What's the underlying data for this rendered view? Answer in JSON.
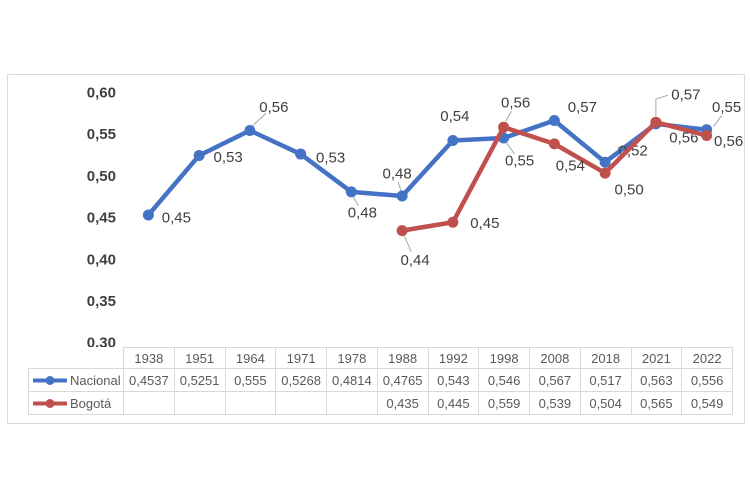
{
  "chart_data": {
    "type": "line",
    "title": "",
    "categories": [
      "1938",
      "1951",
      "1964",
      "1971",
      "1978",
      "1988",
      "1992",
      "1998",
      "2008",
      "2018",
      "2021",
      "2022"
    ],
    "y_axis": {
      "min": 0.3,
      "max": 0.6,
      "step": 0.05,
      "tick_labels": [
        "0,60",
        "0,55",
        "0,50",
        "0,45",
        "0,40",
        "0,35",
        "0,30"
      ]
    },
    "series": [
      {
        "name": "Nacional",
        "color": "#4472C4",
        "marker": "circle",
        "values": [
          0.4537,
          0.5251,
          0.555,
          0.5268,
          0.4814,
          0.4765,
          0.543,
          0.546,
          0.567,
          0.517,
          0.563,
          0.556
        ],
        "table_values": [
          "0,4537",
          "0,5251",
          "0,555",
          "0,5268",
          "0,4814",
          "0,4765",
          "0,543",
          "0,546",
          "0,567",
          "0,517",
          "0,563",
          "0,556"
        ],
        "point_labels": [
          "0,45",
          "0,53",
          "0,56",
          "0,53",
          "0,48",
          "0,48",
          "0,54",
          "0,55",
          "0,57",
          "0,52",
          "0,56",
          "0,56"
        ]
      },
      {
        "name": "Bogotá",
        "color": "#C0504D",
        "marker": "circle",
        "values": [
          null,
          null,
          null,
          null,
          null,
          0.435,
          0.445,
          0.559,
          0.539,
          0.504,
          0.565,
          0.549
        ],
        "table_values": [
          "",
          "",
          "",
          "",
          "",
          "0,435",
          "0,445",
          "0,559",
          "0,539",
          "0,504",
          "0,565",
          "0,549"
        ],
        "point_labels": [
          null,
          null,
          null,
          null,
          null,
          "0,44",
          "0,45",
          "0,56",
          "0,54",
          "0,50",
          "0,57",
          "0,55"
        ]
      }
    ],
    "legend_position": "data-table-left",
    "grid": false,
    "data_table_shown": true,
    "colors": {
      "data_label": "#3F3F3F",
      "axis_label": "#3F3F3F",
      "leader_line": "#A6A6A6",
      "table_text": "#595959",
      "table_border": "#D9D9D9",
      "frame_border": "#D9D9D9"
    }
  }
}
